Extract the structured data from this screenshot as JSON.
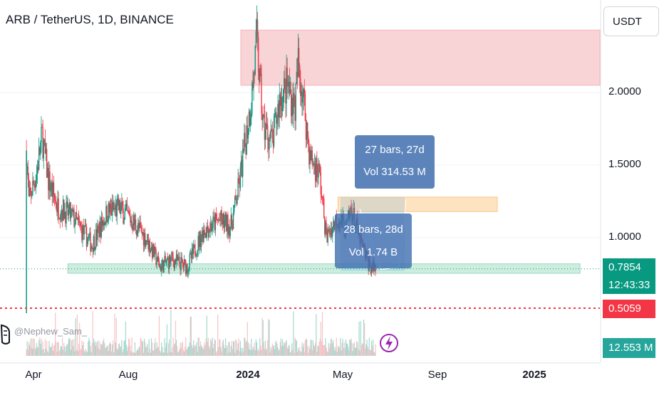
{
  "header": {
    "title": "ARB / TetherUS, 1D, BINANCE"
  },
  "currency_button": {
    "label": "USDT"
  },
  "price_axis": {
    "ticks": [
      "2.0000",
      "1.5000",
      "1.0000"
    ]
  },
  "time_axis": {
    "ticks": [
      {
        "label": "Apr",
        "bold": false
      },
      {
        "label": "Aug",
        "bold": false
      },
      {
        "label": "2024",
        "bold": true
      },
      {
        "label": "May",
        "bold": false
      },
      {
        "label": "Sep",
        "bold": false
      },
      {
        "label": "2025",
        "bold": true
      }
    ]
  },
  "badges": {
    "last_price": "0.7854",
    "countdown": "12:43:33",
    "low_line": "0.5059",
    "volume": "12.553 M"
  },
  "measure_1": {
    "line1": "27 bars, 27d",
    "line2": "Vol 314.53 M"
  },
  "measure_2": {
    "line1": "28 bars, 28d",
    "line2": "Vol 1.74 B"
  },
  "watermark": {
    "text": "@Nephew_Sam_"
  },
  "colors": {
    "up": "#089981",
    "down": "#f23645",
    "supply_zone": "#f9d4d7",
    "demand_zone": "#cdeede",
    "orange_zone": "#fde3c0",
    "bolt": "#9c27b0"
  },
  "chart_data": {
    "type": "candlestick",
    "symbol": "ARB / TetherUS",
    "interval": "1D",
    "exchange": "BINANCE",
    "y_ticks": [
      1.0,
      1.5,
      2.0
    ],
    "x_ticks": [
      "Apr",
      "Aug",
      "2024",
      "May",
      "Sep",
      "2025"
    ],
    "path": [
      [
        "2023-03-23",
        1.6
      ],
      [
        "2023-03-26",
        1.25
      ],
      [
        "2023-04-05",
        1.45
      ],
      [
        "2023-04-12",
        1.7
      ],
      [
        "2023-04-20",
        1.4
      ],
      [
        "2023-05-01",
        1.22
      ],
      [
        "2023-05-20",
        1.15
      ],
      [
        "2023-06-15",
        0.95
      ],
      [
        "2023-07-05",
        1.18
      ],
      [
        "2023-07-20",
        1.2
      ],
      [
        "2023-08-05",
        1.12
      ],
      [
        "2023-08-25",
        0.98
      ],
      [
        "2023-09-10",
        0.8
      ],
      [
        "2023-09-25",
        0.85
      ],
      [
        "2023-10-15",
        0.8
      ],
      [
        "2023-11-05",
        1.05
      ],
      [
        "2023-11-25",
        1.12
      ],
      [
        "2023-12-10",
        1.08
      ],
      [
        "2023-12-20",
        1.35
      ],
      [
        "2024-01-05",
        1.95
      ],
      [
        "2024-01-12",
        2.35
      ],
      [
        "2024-01-20",
        1.78
      ],
      [
        "2024-02-01",
        1.65
      ],
      [
        "2024-02-10",
        1.95
      ],
      [
        "2024-02-20",
        2.05
      ],
      [
        "2024-03-01",
        1.9
      ],
      [
        "2024-03-05",
        2.2
      ],
      [
        "2024-03-12",
        1.95
      ],
      [
        "2024-03-20",
        1.55
      ],
      [
        "2024-04-01",
        1.45
      ],
      [
        "2024-04-10",
        1.0
      ],
      [
        "2024-04-25",
        1.15
      ],
      [
        "2024-05-05",
        1.05
      ],
      [
        "2024-05-12",
        1.2
      ],
      [
        "2024-05-25",
        0.95
      ],
      [
        "2024-06-05",
        0.8
      ],
      [
        "2024-06-12",
        0.79
      ]
    ],
    "last_price": 0.7854,
    "horizontal_line": 0.5059,
    "zones": [
      {
        "kind": "supply",
        "from": "2024-01-01",
        "to": "2025-03-31",
        "low": 2.05,
        "high": 2.43
      },
      {
        "kind": "orange",
        "from": "2024-04-25",
        "to": "2024-11-15",
        "low": 1.18,
        "high": 1.28
      },
      {
        "kind": "demand",
        "from": "2023-05-15",
        "to": "2025-03-01",
        "low": 0.755,
        "high": 0.82
      }
    ],
    "measures": [
      {
        "bars": 27,
        "days": 27,
        "volume": "314.53 M"
      },
      {
        "bars": 28,
        "days": 28,
        "volume": "1.74 B"
      }
    ],
    "volume_last": "12.553 M"
  }
}
